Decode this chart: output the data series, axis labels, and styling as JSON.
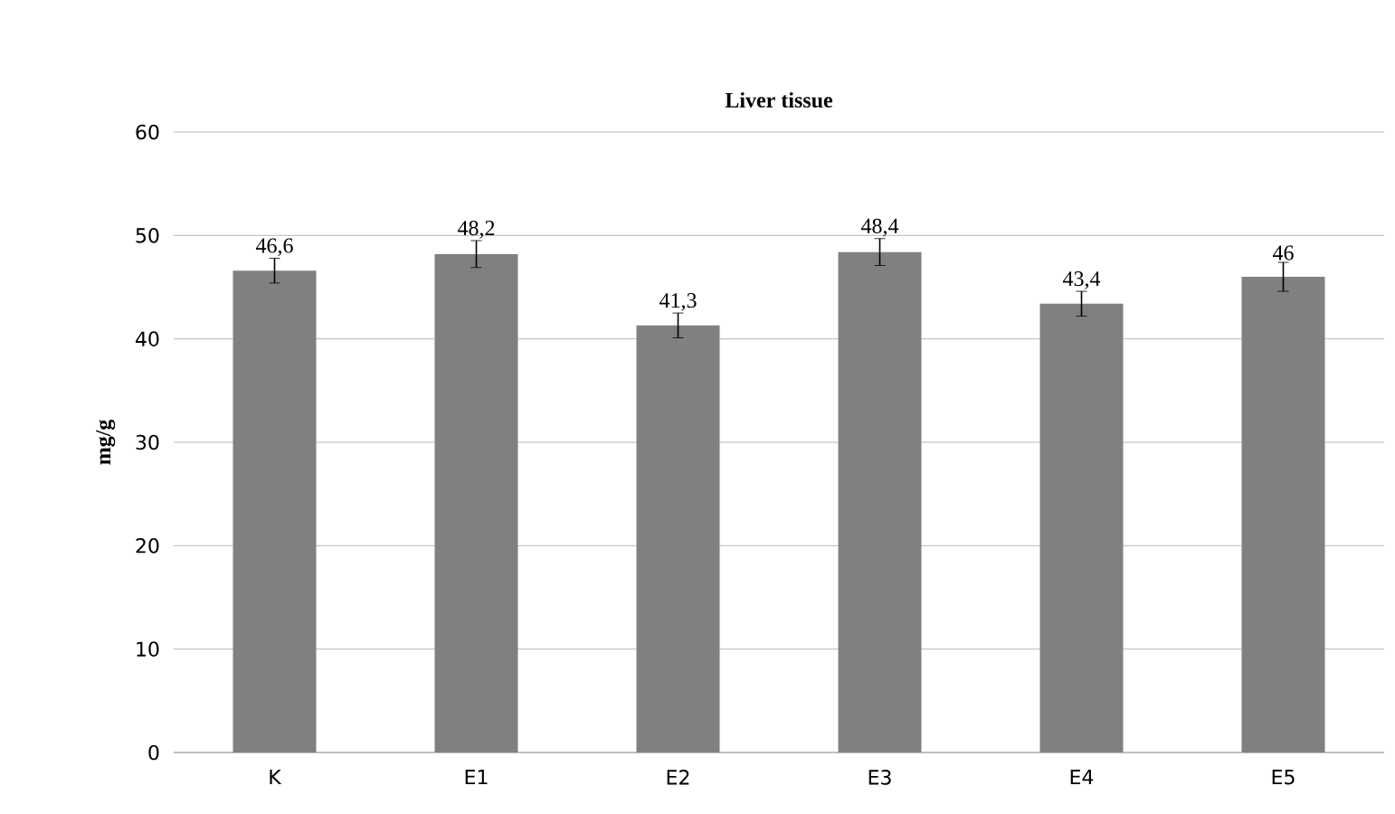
{
  "chart_data": {
    "type": "bar",
    "title": "Liver tissue",
    "ylabel": "mg/g",
    "categories": [
      "K",
      "E1",
      "E2",
      "E3",
      "E4",
      "E5"
    ],
    "values": [
      46.6,
      48.2,
      41.3,
      48.4,
      43.4,
      46
    ],
    "value_labels": [
      "46,6",
      "48,2",
      "41,3",
      "48,4",
      "43,4",
      "46"
    ],
    "errors": [
      1.2,
      1.3,
      1.2,
      1.3,
      1.2,
      1.4
    ],
    "color": "#808080",
    "ylim": [
      0,
      60
    ],
    "yticks": [
      0,
      10,
      20,
      30,
      40,
      50,
      60
    ],
    "grid": "y"
  }
}
